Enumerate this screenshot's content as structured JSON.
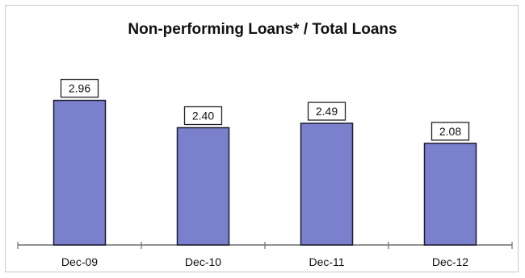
{
  "chart_data": {
    "type": "bar",
    "title": "Non-performing Loans* / Total Loans",
    "categories": [
      "Dec-09",
      "Dec-10",
      "Dec-11",
      "Dec-12"
    ],
    "values": [
      2.96,
      2.4,
      2.49,
      2.08
    ],
    "value_labels": [
      "2.96",
      "2.40",
      "2.49",
      "2.08"
    ],
    "xlabel": "",
    "ylabel": "",
    "ylim": [
      0,
      3.2
    ],
    "grid": false,
    "legend": "none",
    "bar_color": "#7b80cc",
    "bar_edge_color": "#1a1a2e"
  }
}
